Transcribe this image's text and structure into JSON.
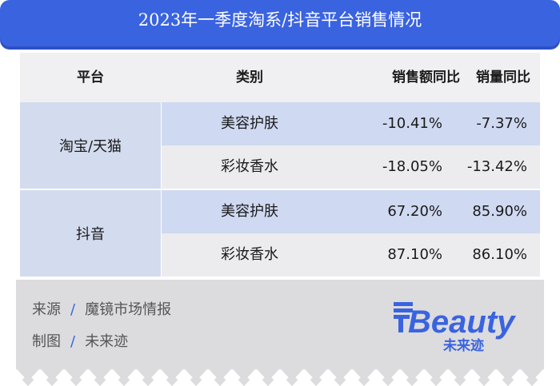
{
  "title": "2023年一季度淘系/抖音平台销售情况",
  "table": {
    "headers": [
      "平台",
      "类别",
      "销售额同比",
      "销量同比"
    ],
    "groups": [
      {
        "platform": "淘宝/天猫",
        "rows": [
          {
            "category": "美容护肤",
            "sales_yoy": "-10.41%",
            "volume_yoy": "-7.37%"
          },
          {
            "category": "彩妆香水",
            "sales_yoy": "-18.05%",
            "volume_yoy": "-13.42%"
          }
        ]
      },
      {
        "platform": "抖音",
        "rows": [
          {
            "category": "美容护肤",
            "sales_yoy": "67.20%",
            "volume_yoy": "85.90%"
          },
          {
            "category": "彩妆香水",
            "sales_yoy": "87.10%",
            "volume_yoy": "86.10%"
          }
        ]
      }
    ]
  },
  "footer": {
    "source_label": "来源",
    "source_value": "魔镜市场情报",
    "chart_label": "制图",
    "chart_value": "未来迹",
    "separator": "/"
  },
  "logo": {
    "word": "FBeauty",
    "tagline": "未来迹"
  },
  "colors": {
    "accent": "#3a63e0",
    "platform_cell": "#d3dbee",
    "row_highlight": "#cfd9f1",
    "row_alt": "#ececef",
    "header_bg": "#f0f0f2",
    "footer_bg": "#dcdcde"
  }
}
